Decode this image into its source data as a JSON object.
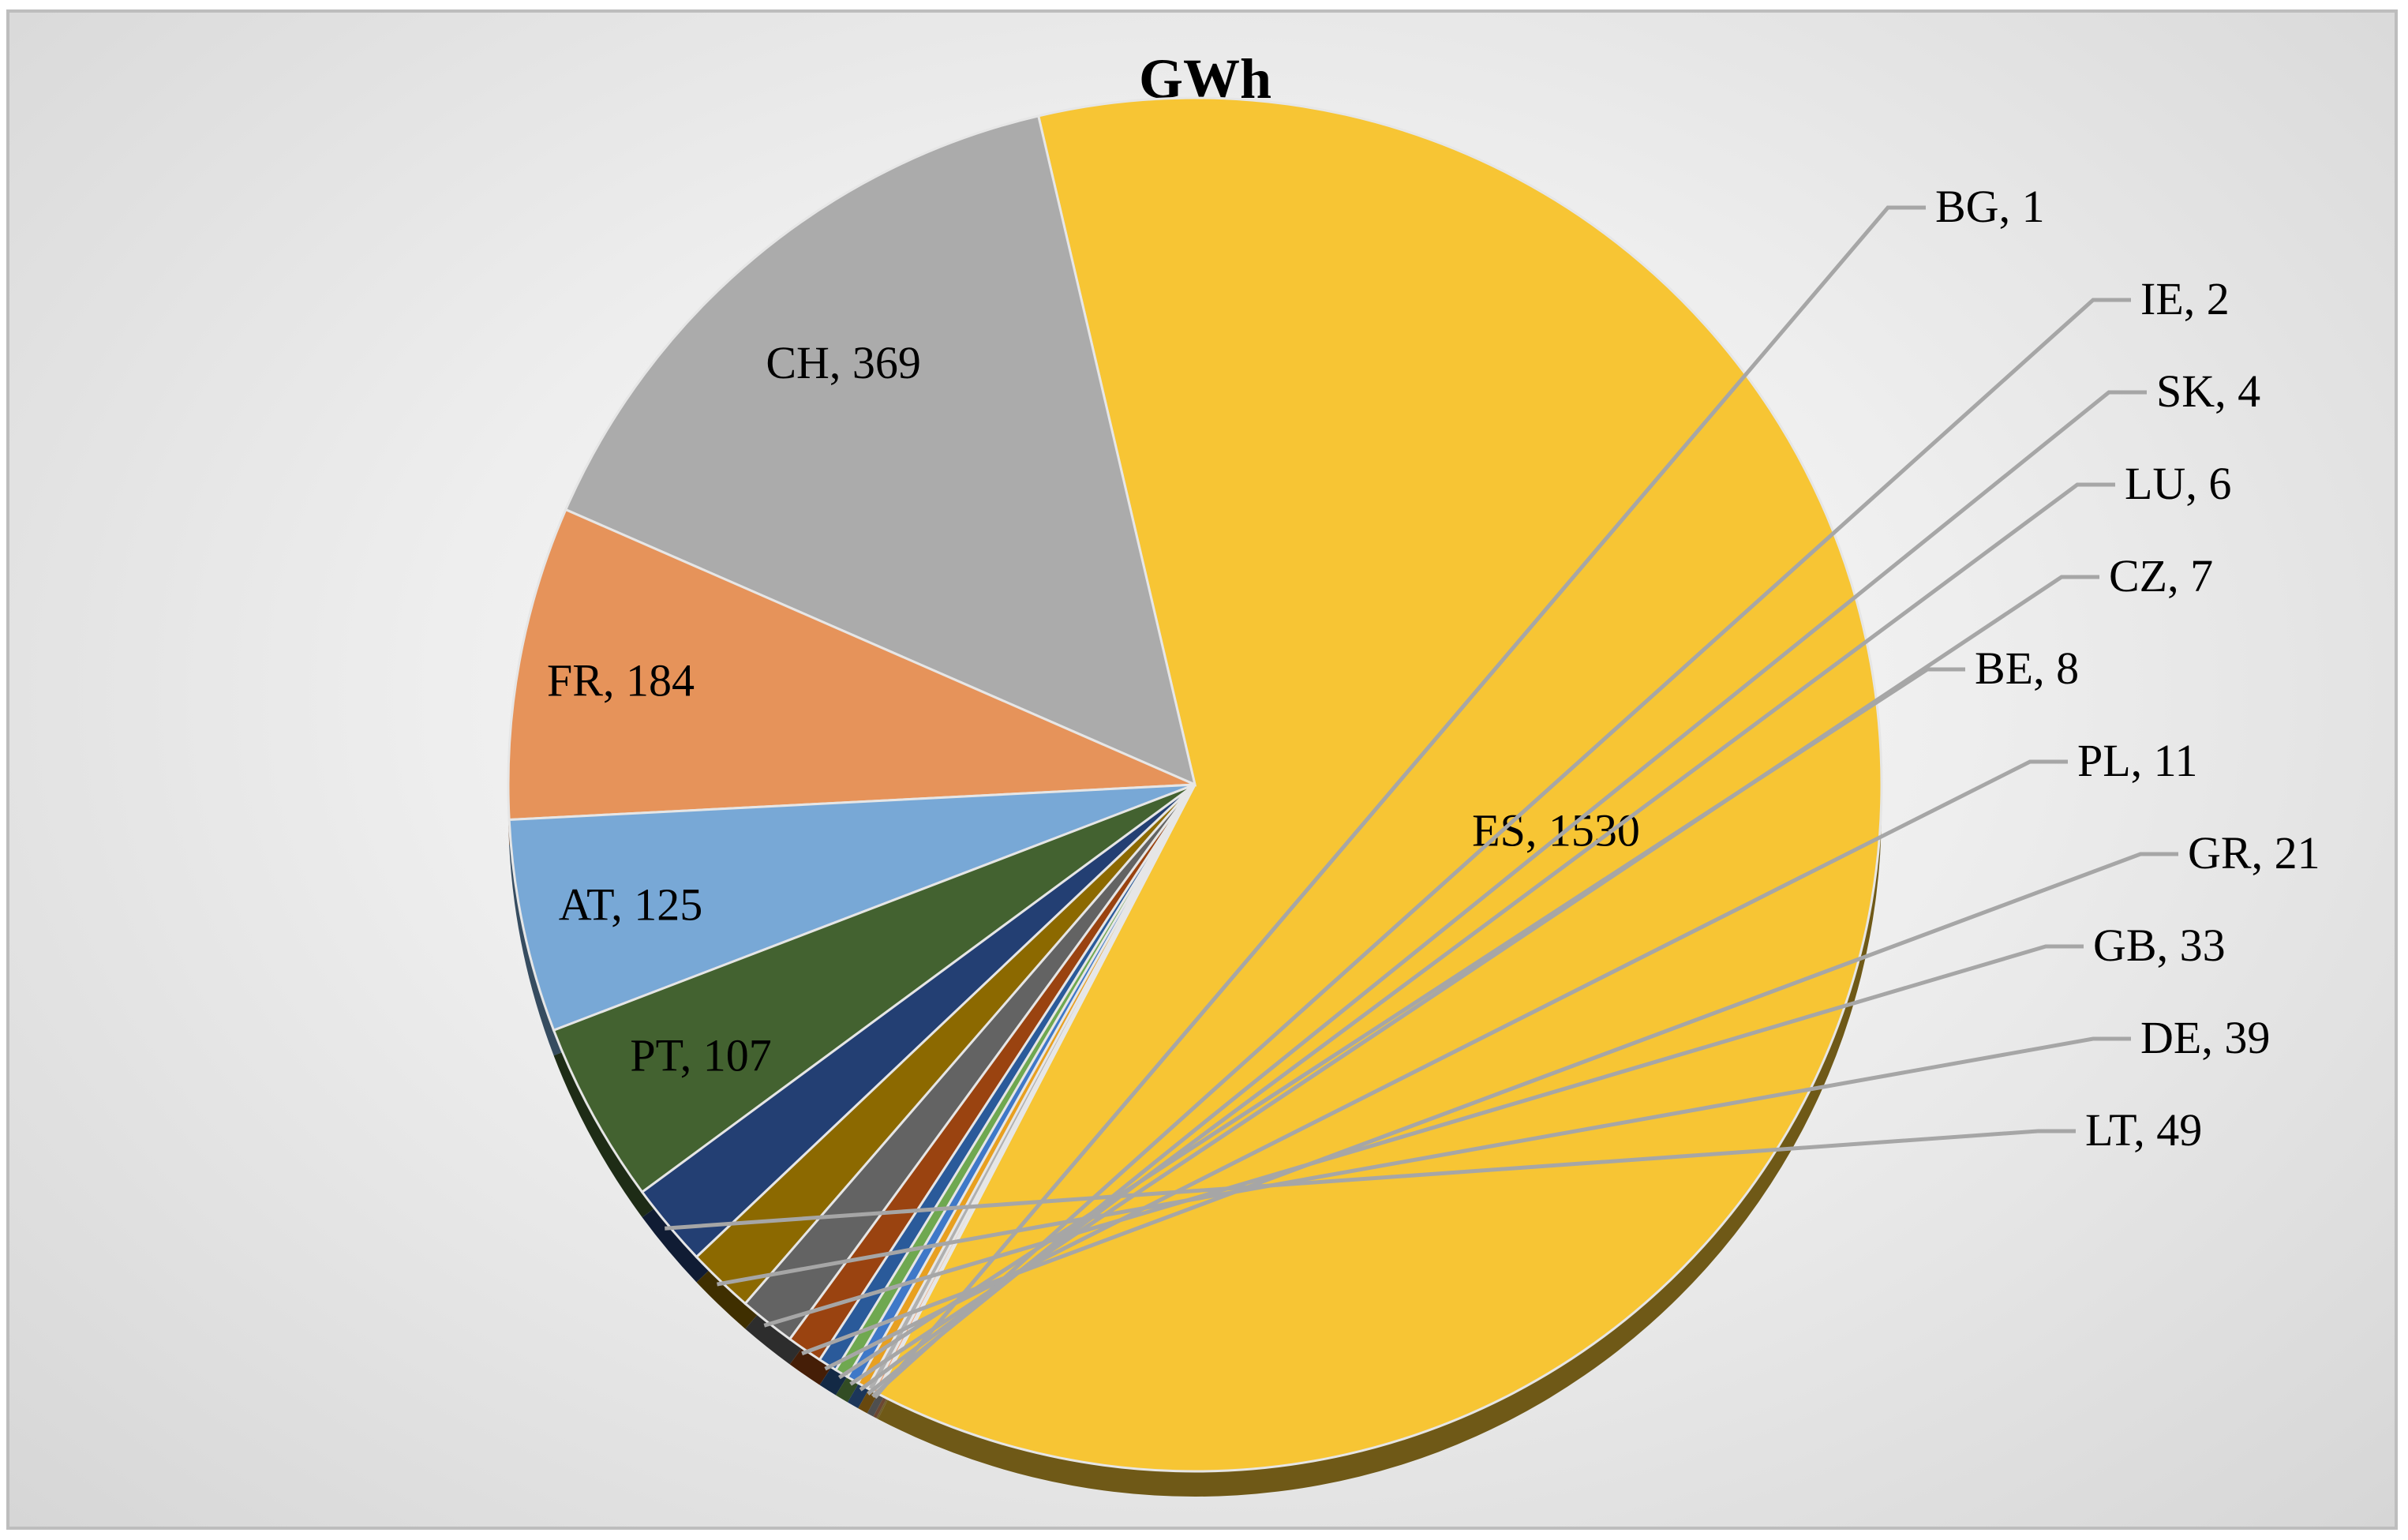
{
  "chart_data": {
    "type": "pie",
    "title": "GWh",
    "slices": [
      {
        "label": "ES",
        "value": 1530,
        "text": "ES, 1530",
        "color": "#f7c534"
      },
      {
        "label": "CH",
        "value": 369,
        "text": "CH, 369",
        "color": "#ababab"
      },
      {
        "label": "FR",
        "value": 184,
        "text": "FR, 184",
        "color": "#e6935a"
      },
      {
        "label": "AT",
        "value": 125,
        "text": "AT, 125",
        "color": "#78a8d6"
      },
      {
        "label": "PT",
        "value": 107,
        "text": "PT, 107",
        "color": "#436230"
      },
      {
        "label": "LT",
        "value": 49,
        "text": "LT, 49",
        "color": "#233f73"
      },
      {
        "label": "DE",
        "value": 39,
        "text": "DE, 39",
        "color": "#8c6900"
      },
      {
        "label": "GB",
        "value": 33,
        "text": "GB, 33",
        "color": "#636363"
      },
      {
        "label": "GR",
        "value": 21,
        "text": "GR, 21",
        "color": "#9a4310"
      },
      {
        "label": "PL",
        "value": 11,
        "text": "PL, 11",
        "color": "#2a5a9a"
      },
      {
        "label": "BE",
        "value": 8,
        "text": "BE, 8",
        "color": "#6fa850"
      },
      {
        "label": "CZ",
        "value": 7,
        "text": "CZ, 7",
        "color": "#3f78c8"
      },
      {
        "label": "LU",
        "value": 6,
        "text": "LU, 6",
        "color": "#e8a020"
      },
      {
        "label": "SK",
        "value": 4,
        "text": "SK, 4",
        "color": "#b0b0b0"
      },
      {
        "label": "IE",
        "value": 2,
        "text": "IE, 2",
        "color": "#f0a070"
      },
      {
        "label": "BG",
        "value": 1,
        "text": "BG, 1",
        "color": "#f5d060"
      }
    ],
    "inside_labels": [
      "ES",
      "CH",
      "FR",
      "AT",
      "PT"
    ],
    "outside_labels": [
      "BG",
      "IE",
      "SK",
      "LU",
      "CZ",
      "BE",
      "PL",
      "GR",
      "GB",
      "DE",
      "LT"
    ],
    "direction": "counterclockwise",
    "legend": "none"
  }
}
